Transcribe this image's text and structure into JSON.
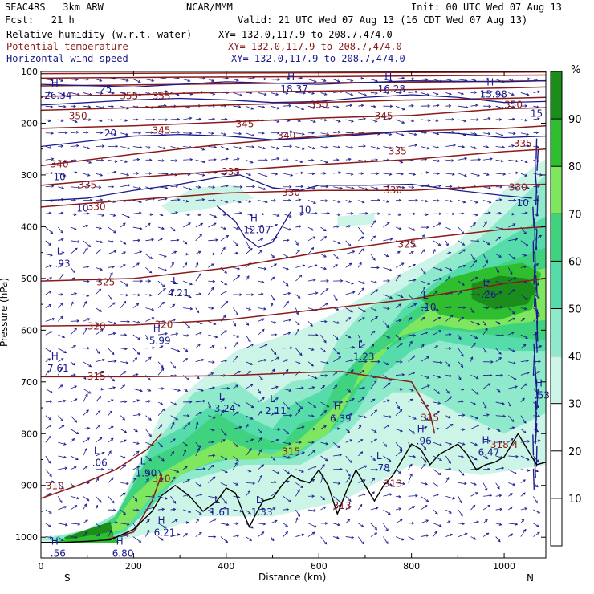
{
  "header": {
    "model": "SEAC4RS   3km ARW",
    "org": "NCAR/MMM",
    "init": "Init: 00 UTC Wed 07 Aug 13",
    "fcst": "Fcst:   21 h",
    "valid": "Valid: 21 UTC Wed 07 Aug 13 (16 CDT Wed 07 Aug 13)",
    "fields": [
      {
        "name": "Relative humidity (w.r.t. water)",
        "xy": "XY= 132.0,117.9 to 208.7,474.0",
        "color": "#000000"
      },
      {
        "name": "Potential temperature",
        "xy": "XY= 132.0,117.9 to 208.7,474.0",
        "color": "#8b1a1a"
      },
      {
        "name": "Horizontal wind speed",
        "xy": "XY= 132.0,117.9 to 208.7,474.0",
        "color": "#1a1a8c"
      }
    ]
  },
  "chart_data": {
    "type": "cross-section",
    "xlabel": "Distance (km)",
    "ylabel": "Pressure (hPa)",
    "x_ticks": [
      0,
      200,
      400,
      600,
      800,
      1000
    ],
    "y_ticks": [
      100,
      200,
      300,
      400,
      500,
      600,
      700,
      800,
      900,
      1000
    ],
    "xlim": [
      0,
      1090
    ],
    "ylim": [
      1040,
      100
    ],
    "x_end_labels": {
      "left": "S",
      "right": "N"
    },
    "colorbar": {
      "unit": "%",
      "ticks": [
        10,
        20,
        30,
        40,
        50,
        60,
        70,
        80,
        90
      ],
      "bins": [
        {
          "lo": 0,
          "hi": 30,
          "color": "#ffffff"
        },
        {
          "lo": 30,
          "hi": 40,
          "color": "#ccf5e7"
        },
        {
          "lo": 40,
          "hi": 50,
          "color": "#8fe9cb"
        },
        {
          "lo": 50,
          "hi": 60,
          "color": "#55dcaa"
        },
        {
          "lo": 60,
          "hi": 70,
          "color": "#3fd27f"
        },
        {
          "lo": 70,
          "hi": 80,
          "color": "#7ee65f"
        },
        {
          "lo": 80,
          "hi": 90,
          "color": "#2fbe2f"
        },
        {
          "lo": 90,
          "hi": 100,
          "color": "#1b8d1b"
        }
      ]
    },
    "theta_labels": [
      {
        "x": 30,
        "p": 902,
        "text": "310"
      },
      {
        "x": 260,
        "p": 888,
        "text": "310"
      },
      {
        "x": 120,
        "p": 593,
        "text": "320"
      },
      {
        "x": 265,
        "p": 590,
        "text": "320"
      },
      {
        "x": 120,
        "p": 690,
        "text": "315"
      },
      {
        "x": 840,
        "p": 770,
        "text": "315"
      },
      {
        "x": 140,
        "p": 508,
        "text": "325"
      },
      {
        "x": 790,
        "p": 435,
        "text": "325"
      },
      {
        "x": 120,
        "p": 362,
        "text": "330"
      },
      {
        "x": 540,
        "p": 335,
        "text": "330"
      },
      {
        "x": 760,
        "p": 330,
        "text": "330"
      },
      {
        "x": 1030,
        "p": 325,
        "text": "330"
      },
      {
        "x": 100,
        "p": 320,
        "text": "335"
      },
      {
        "x": 410,
        "p": 295,
        "text": "335"
      },
      {
        "x": 770,
        "p": 255,
        "text": "335"
      },
      {
        "x": 1040,
        "p": 240,
        "text": "335"
      },
      {
        "x": 40,
        "p": 280,
        "text": "340"
      },
      {
        "x": 530,
        "p": 225,
        "text": "340"
      },
      {
        "x": 260,
        "p": 215,
        "text": "345"
      },
      {
        "x": 440,
        "p": 202,
        "text": "345"
      },
      {
        "x": 740,
        "p": 187,
        "text": "345"
      },
      {
        "x": 80,
        "p": 187,
        "text": "350"
      },
      {
        "x": 600,
        "p": 165,
        "text": "350"
      },
      {
        "x": 1020,
        "p": 165,
        "text": "350"
      },
      {
        "x": 190,
        "p": 148,
        "text": "355"
      },
      {
        "x": 260,
        "p": 148,
        "text": "355"
      },
      {
        "x": 540,
        "p": 835,
        "text": "315"
      },
      {
        "x": 1000,
        "p": 822,
        "text": "318.4"
      },
      {
        "x": 650,
        "p": 940,
        "text": "313"
      },
      {
        "x": 760,
        "p": 897,
        "text": "313"
      }
    ],
    "wind_labels": [
      {
        "x": 140,
        "p": 135,
        "text": "25"
      },
      {
        "x": 150,
        "p": 220,
        "text": "20"
      },
      {
        "x": 1070,
        "p": 182,
        "text": "15"
      },
      {
        "x": 1040,
        "p": 355,
        "text": "10"
      },
      {
        "x": 90,
        "p": 365,
        "text": "10"
      },
      {
        "x": 570,
        "p": 368,
        "text": "10"
      },
      {
        "x": 40,
        "p": 305,
        "text": "10"
      }
    ],
    "hl_markers": [
      {
        "type": "H",
        "x": 30,
        "p": 140,
        "value": "26.34"
      },
      {
        "type": "H",
        "x": 540,
        "p": 128,
        "value": "18.37"
      },
      {
        "type": "H",
        "x": 750,
        "p": 128,
        "value": "16.28"
      },
      {
        "type": "H",
        "x": 970,
        "p": 138,
        "value": "15.98"
      },
      {
        "type": "H",
        "x": 460,
        "p": 400,
        "value": "12.07"
      },
      {
        "type": "L",
        "x": 40,
        "p": 465,
        "value": ".93"
      },
      {
        "type": "L",
        "x": 290,
        "p": 522,
        "value": "4.21"
      },
      {
        "type": "L",
        "x": 830,
        "p": 550,
        "value": ".10"
      },
      {
        "type": "L",
        "x": 960,
        "p": 525,
        "value": ".26"
      },
      {
        "type": "H",
        "x": 250,
        "p": 614,
        "value": "5.99"
      },
      {
        "type": "H",
        "x": 30,
        "p": 668,
        "value": "7.61"
      },
      {
        "type": "L",
        "x": 690,
        "p": 645,
        "value": "1.23"
      },
      {
        "type": "L",
        "x": 390,
        "p": 745,
        "value": "3.24"
      },
      {
        "type": "L",
        "x": 500,
        "p": 750,
        "value": "2.11"
      },
      {
        "type": "H",
        "x": 640,
        "p": 765,
        "value": "6.39"
      },
      {
        "type": "H",
        "x": 820,
        "p": 808,
        "value": ".96"
      },
      {
        "type": "L",
        "x": 730,
        "p": 860,
        "value": ".78"
      },
      {
        "type": "H",
        "x": 960,
        "p": 830,
        "value": "6.47"
      },
      {
        "type": "H",
        "x": 1075,
        "p": 720,
        "value": ".53"
      },
      {
        "type": "L",
        "x": 120,
        "p": 850,
        "value": ".06"
      },
      {
        "type": "L",
        "x": 220,
        "p": 870,
        "value": "1.90"
      },
      {
        "type": "H",
        "x": 260,
        "p": 985,
        "value": "6.21"
      },
      {
        "type": "L",
        "x": 380,
        "p": 945,
        "value": "1.61"
      },
      {
        "type": "L",
        "x": 470,
        "p": 945,
        "value": "1.33"
      },
      {
        "type": "H",
        "x": 30,
        "p": 1025,
        "value": ".56"
      },
      {
        "type": "H",
        "x": 170,
        "p": 1025,
        "value": "6.80"
      }
    ]
  }
}
